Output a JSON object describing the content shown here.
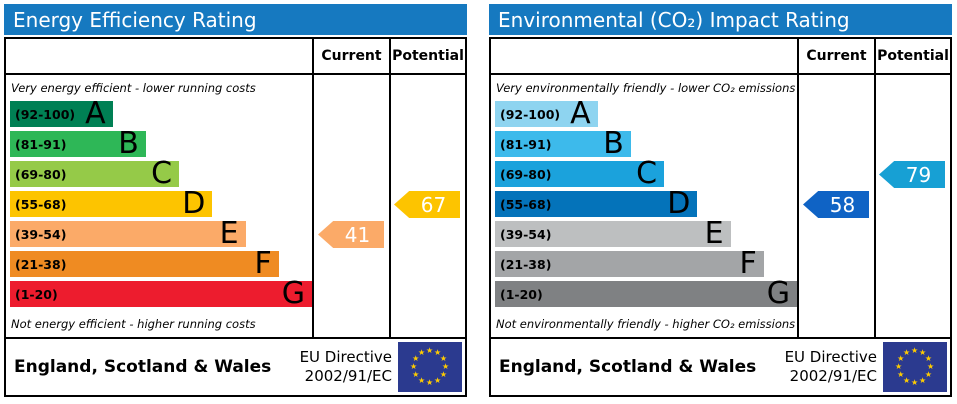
{
  "chart_data": [
    {
      "type": "bar",
      "title": "Energy Efficiency Rating",
      "columns": [
        "Current",
        "Potential"
      ],
      "top_caption": "Very energy efficient - lower running costs",
      "bottom_caption": "Not energy efficient - higher running costs",
      "bands": [
        {
          "letter": "A",
          "range_label": "(92-100)",
          "min": 92,
          "max": 100,
          "color": "#008054",
          "width_pct": 34
        },
        {
          "letter": "B",
          "range_label": "(81-91)",
          "min": 81,
          "max": 91,
          "color": "#2eb757",
          "width_pct": 45
        },
        {
          "letter": "C",
          "range_label": "(69-80)",
          "min": 69,
          "max": 80,
          "color": "#95ca48",
          "width_pct": 56
        },
        {
          "letter": "D",
          "range_label": "(55-68)",
          "min": 55,
          "max": 68,
          "color": "#fdc400",
          "width_pct": 67
        },
        {
          "letter": "E",
          "range_label": "(39-54)",
          "min": 39,
          "max": 54,
          "color": "#fbaa68",
          "width_pct": 78
        },
        {
          "letter": "F",
          "range_label": "(21-38)",
          "min": 21,
          "max": 38,
          "color": "#ef8b22",
          "width_pct": 89
        },
        {
          "letter": "G",
          "range_label": "(1-20)",
          "min": 1,
          "max": 20,
          "color": "#ed1c2e",
          "width_pct": 100
        }
      ],
      "current": {
        "value": 41,
        "color": "#fbaa68"
      },
      "potential": {
        "value": 67,
        "color": "#fdc400"
      },
      "footer_region": "England, Scotland & Wales",
      "footer_directive": [
        "EU Directive",
        "2002/91/EC"
      ]
    },
    {
      "type": "bar",
      "title": "Environmental (CO₂) Impact Rating",
      "columns": [
        "Current",
        "Potential"
      ],
      "top_caption": "Very environmentally friendly - lower CO₂ emissions",
      "bottom_caption": "Not environmentally friendly - higher CO₂ emissions",
      "bands": [
        {
          "letter": "A",
          "range_label": "(92-100)",
          "min": 92,
          "max": 100,
          "color": "#8ed4f0",
          "width_pct": 34
        },
        {
          "letter": "B",
          "range_label": "(81-91)",
          "min": 81,
          "max": 91,
          "color": "#3dbaeb",
          "width_pct": 45
        },
        {
          "letter": "C",
          "range_label": "(69-80)",
          "min": 69,
          "max": 80,
          "color": "#1ba2dc",
          "width_pct": 56
        },
        {
          "letter": "D",
          "range_label": "(55-68)",
          "min": 55,
          "max": 68,
          "color": "#0473ba",
          "width_pct": 67
        },
        {
          "letter": "E",
          "range_label": "(39-54)",
          "min": 39,
          "max": 54,
          "color": "#bdbfc0",
          "width_pct": 78
        },
        {
          "letter": "F",
          "range_label": "(21-38)",
          "min": 21,
          "max": 38,
          "color": "#a3a5a7",
          "width_pct": 89
        },
        {
          "letter": "G",
          "range_label": "(1-20)",
          "min": 1,
          "max": 20,
          "color": "#7f8183",
          "width_pct": 100
        }
      ],
      "current": {
        "value": 58,
        "color": "#0f63c5"
      },
      "potential": {
        "value": 79,
        "color": "#17a0d4"
      },
      "footer_region": "England, Scotland & Wales",
      "footer_directive": [
        "EU Directive",
        "2002/91/EC"
      ]
    }
  ],
  "colors": {
    "header_bg": "#1679c0",
    "flag_bg": "#2b3a8f",
    "flag_star": "#ffcc00"
  }
}
